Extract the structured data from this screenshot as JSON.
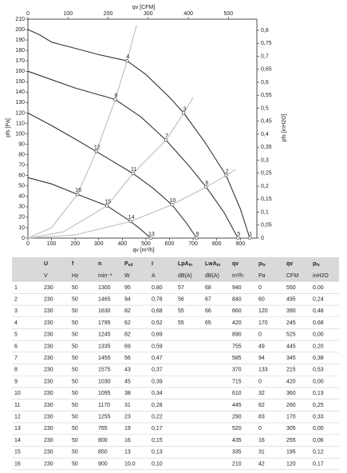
{
  "chart_data": {
    "type": "line",
    "x_label": "qv [m³/h]",
    "x2_label": "qv [CFM]",
    "y_label": "pfs [Pa]",
    "y2_label": "pfs [inH2O]",
    "xlim": [
      0,
      970
    ],
    "xticks": [
      0,
      100,
      200,
      300,
      400,
      500,
      600,
      700,
      800,
      900
    ],
    "x2lim": [
      0,
      571
    ],
    "x2ticks": [
      0,
      100,
      200,
      300,
      400,
      500
    ],
    "ylim": [
      0,
      210
    ],
    "yticks": [
      0,
      10,
      20,
      30,
      40,
      50,
      60,
      70,
      80,
      90,
      100,
      110,
      120,
      130,
      140,
      150,
      160,
      170,
      180,
      190,
      200,
      210
    ],
    "y2lim": [
      0,
      0.843
    ],
    "y2ticks": [
      0,
      {
        "value": 0.05,
        "label": "0,05"
      },
      {
        "value": 0.1,
        "label": "0,1"
      },
      {
        "value": 0.15,
        "label": "0,15"
      },
      {
        "value": 0.2,
        "label": "0,2"
      },
      {
        "value": 0.25,
        "label": "0,25"
      },
      {
        "value": 0.3,
        "label": "0,3"
      },
      {
        "value": 0.35,
        "label": "0,35"
      },
      {
        "value": 0.4,
        "label": "0,4"
      },
      {
        "value": 0.45,
        "label": "0,45"
      },
      {
        "value": 0.5,
        "label": "0,5"
      },
      {
        "value": 0.55,
        "label": "0,55"
      },
      {
        "value": 0.6,
        "label": "0,6"
      },
      {
        "value": 0.65,
        "label": "0,65"
      },
      {
        "value": 0.7,
        "label": "0,7"
      },
      {
        "value": 0.75,
        "label": "0,75"
      },
      {
        "value": 0.8,
        "label": "0,8"
      }
    ],
    "series": [
      {
        "color": "#333333",
        "x": [
          0,
          50,
          100,
          150,
          200,
          300,
          420,
          500,
          600,
          660,
          750,
          840,
          900,
          940
        ],
        "values": [
          200,
          195,
          188,
          185,
          182,
          176,
          170,
          157,
          135,
          120,
          92,
          60,
          28,
          0
        ]
      },
      {
        "color": "#333333",
        "x": [
          0,
          100,
          200,
          370,
          480,
          585,
          680,
          755,
          830,
          890
        ],
        "values": [
          160,
          152,
          144,
          133,
          116,
          94,
          70,
          49,
          25,
          0
        ]
      },
      {
        "color": "#333333",
        "x": [
          0,
          100,
          200,
          290,
          445,
          530,
          610,
          670,
          715
        ],
        "values": [
          120,
          108,
          95,
          83,
          62,
          48,
          32,
          15,
          0
        ]
      },
      {
        "color": "#333333",
        "x": [
          0,
          100,
          210,
          335,
          435,
          480,
          520
        ],
        "values": [
          58,
          52,
          42,
          31,
          16,
          8,
          0
        ]
      },
      {
        "color": "#bdbdbd",
        "x": [
          0,
          100,
          210,
          290,
          370,
          420,
          460
        ],
        "values": [
          0,
          10,
          42,
          83,
          133,
          170,
          204
        ]
      },
      {
        "color": "#bdbdbd",
        "x": [
          0,
          150,
          335,
          445,
          585,
          660,
          700
        ],
        "values": [
          0,
          6,
          31,
          62,
          94,
          120,
          135
        ]
      },
      {
        "color": "#bdbdbd",
        "x": [
          0,
          200,
          435,
          610,
          755,
          840,
          880
        ],
        "values": [
          0,
          3,
          16,
          32,
          49,
          60,
          66
        ]
      }
    ],
    "points": {
      "labels": [
        "1",
        "2",
        "3",
        "4",
        "5",
        "6",
        "7",
        "8",
        "9",
        "10",
        "11",
        "12",
        "13",
        "14",
        "15",
        "16"
      ],
      "x": [
        940,
        840,
        660,
        420,
        890,
        755,
        585,
        370,
        715,
        610,
        445,
        290,
        520,
        435,
        335,
        210
      ],
      "y": [
        0,
        60,
        120,
        170,
        0,
        49,
        94,
        133,
        0,
        32,
        62,
        83,
        0,
        16,
        31,
        42
      ]
    }
  },
  "table": {
    "header": [
      {
        "main": "U"
      },
      {
        "main": "f"
      },
      {
        "main": "n"
      },
      {
        "main": "P",
        "sub": "ed"
      },
      {
        "main": "I"
      },
      {
        "main": "LpA",
        "sub": "in"
      },
      {
        "main": "LwA",
        "sub": "in"
      },
      {
        "main": "qv"
      },
      {
        "main": "p",
        "sub": "fs"
      },
      {
        "main": "qv"
      },
      {
        "main": "p",
        "sub": "fs"
      }
    ],
    "units": [
      "V",
      "Hz",
      "min⁻¹",
      "W",
      "A",
      "dB(A)",
      "dB(A)",
      "m³/h",
      "Pa",
      "CFM",
      "inH2O"
    ],
    "rows": [
      [
        "1",
        "230",
        "50",
        "1300",
        "95",
        "0,80",
        "57",
        "68",
        "940",
        "0",
        "550",
        "0,00"
      ],
      [
        "2",
        "230",
        "50",
        "1465",
        "94",
        "0,78",
        "56",
        "67",
        "840",
        "60",
        "495",
        "0,24"
      ],
      [
        "3",
        "230",
        "50",
        "1630",
        "82",
        "0,68",
        "55",
        "66",
        "660",
        "120",
        "390",
        "0,48"
      ],
      [
        "4",
        "230",
        "50",
        "1795",
        "62",
        "0,52",
        "55",
        "65",
        "420",
        "170",
        "245",
        "0,68"
      ],
      [
        "5",
        "230",
        "50",
        "1245",
        "82",
        "0,69",
        null,
        null,
        "890",
        "0",
        "525",
        "0,00"
      ],
      [
        "6",
        "230",
        "50",
        "1335",
        "69",
        "0,59",
        null,
        null,
        "755",
        "49",
        "445",
        "0,20"
      ],
      [
        "7",
        "230",
        "50",
        "1455",
        "56",
        "0,47",
        null,
        null,
        "585",
        "94",
        "345",
        "0,38"
      ],
      [
        "8",
        "230",
        "50",
        "1575",
        "43",
        "0,37",
        null,
        null,
        "370",
        "133",
        "215",
        "0,53"
      ],
      [
        "9",
        "230",
        "50",
        "1030",
        "45",
        "0,39",
        null,
        null,
        "715",
        "0",
        "420",
        "0,00"
      ],
      [
        "10",
        "230",
        "50",
        "1095",
        "38",
        "0,34",
        null,
        null,
        "610",
        "32",
        "360",
        "0,13"
      ],
      [
        "11",
        "230",
        "50",
        "1170",
        "31",
        "0,28",
        null,
        null,
        "445",
        "62",
        "260",
        "0,25"
      ],
      [
        "12",
        "230",
        "50",
        "1255",
        "23",
        "0,22",
        null,
        null,
        "290",
        "83",
        "170",
        "0,33"
      ],
      [
        "13",
        "230",
        "50",
        "765",
        "19",
        "0,17",
        null,
        null,
        "520",
        "0",
        "305",
        "0,00"
      ],
      [
        "14",
        "230",
        "50",
        "800",
        "16",
        "0,15",
        null,
        null,
        "435",
        "16",
        "255",
        "0,06"
      ],
      [
        "15",
        "230",
        "50",
        "850",
        "13",
        "0,13",
        null,
        null,
        "335",
        "31",
        "195",
        "0,12"
      ],
      [
        "16",
        "230",
        "50",
        "900",
        "10,0",
        "0,10",
        null,
        null,
        "210",
        "42",
        "120",
        "0,17"
      ]
    ]
  }
}
